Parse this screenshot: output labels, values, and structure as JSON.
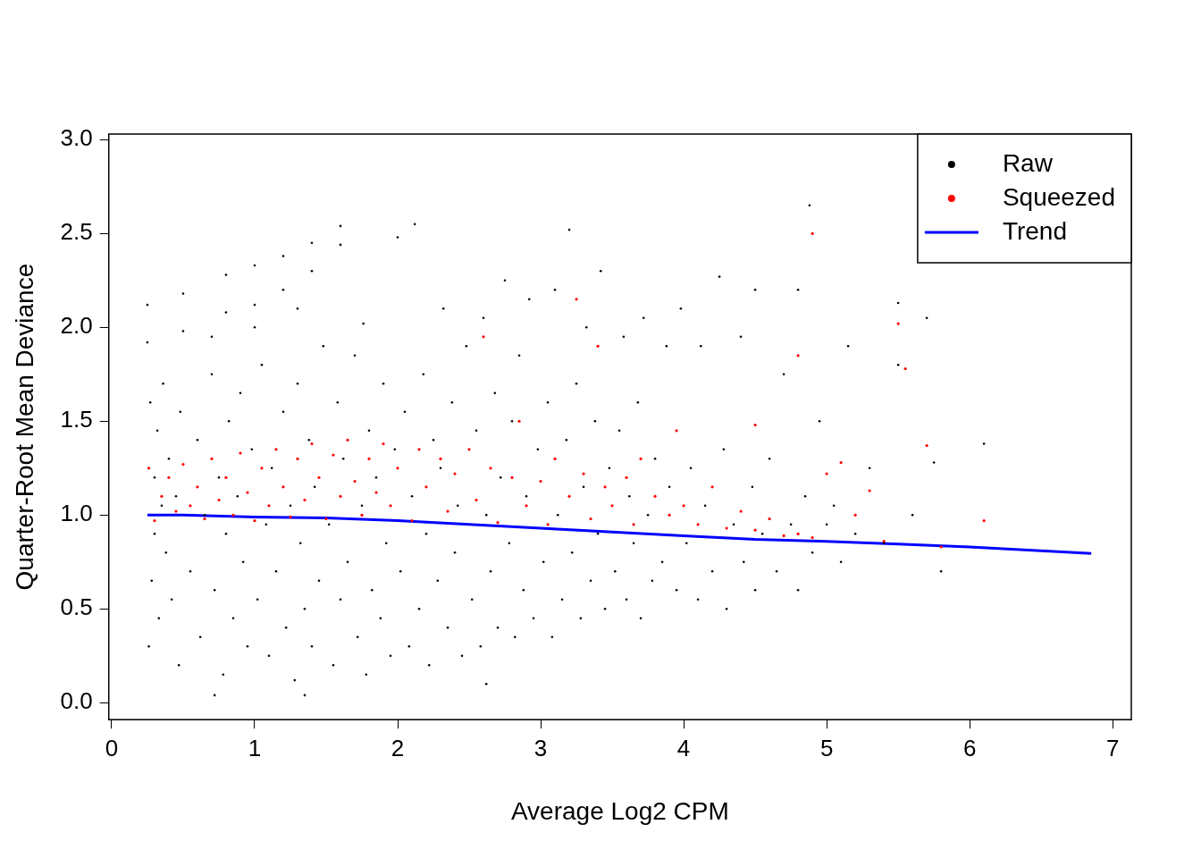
{
  "chart_data": {
    "type": "scatter",
    "x_label": "Average Log2 CPM",
    "y_label": "Quarter-Root Mean Deviance",
    "xlim": [
      -0.02,
      7.13
    ],
    "ylim": [
      -0.09,
      3.03
    ],
    "xticks": [
      0,
      1,
      2,
      3,
      4,
      5,
      6,
      7
    ],
    "yticks": [
      {
        "value": 0,
        "label": "0.0"
      },
      {
        "value": 0.5,
        "label": "0.5"
      },
      {
        "value": 1,
        "label": "1.0"
      },
      {
        "value": 1.5,
        "label": "1.5"
      },
      {
        "value": 2,
        "label": "2.0"
      },
      {
        "value": 2.5,
        "label": "2.5"
      },
      {
        "value": 3,
        "label": "3.0"
      }
    ],
    "grid": false,
    "legend": "top-right",
    "series": [
      {
        "name": "Raw",
        "color": "#000000",
        "marker": "circle",
        "x": [
          0.26,
          0.27,
          0.28,
          0.3,
          0.3,
          0.32,
          0.33,
          0.35,
          0.36,
          0.38,
          0.4,
          0.42,
          0.45,
          0.47,
          0.48,
          0.25,
          0.25,
          0.5,
          0.5,
          0.8,
          1.0,
          1.2,
          1.4,
          1.6,
          0.8,
          1.0,
          1.2,
          1.4,
          1.6,
          0.7,
          1.0,
          1.3,
          0.55,
          0.6,
          0.62,
          0.65,
          0.7,
          0.72,
          0.75,
          0.78,
          0.8,
          0.82,
          0.85,
          0.88,
          0.9,
          0.92,
          0.95,
          0.98,
          0.72,
          1.02,
          1.05,
          1.08,
          1.1,
          1.12,
          1.15,
          1.2,
          1.22,
          1.25,
          1.28,
          1.3,
          1.32,
          1.35,
          1.38,
          1.4,
          1.42,
          1.45,
          1.48,
          1.35,
          1.52,
          1.55,
          1.58,
          1.6,
          1.62,
          1.65,
          1.7,
          1.72,
          1.75,
          1.78,
          1.8,
          1.82,
          1.85,
          1.88,
          1.9,
          1.92,
          1.95,
          1.98,
          1.76,
          2.02,
          2.05,
          2.08,
          2.1,
          2.12,
          2.15,
          2.18,
          2.2,
          2.22,
          2.25,
          2.28,
          2.3,
          2.32,
          2.35,
          2.38,
          2.4,
          2.42,
          2.45,
          2.48,
          2.0,
          2.52,
          2.55,
          2.58,
          2.6,
          2.62,
          2.65,
          2.68,
          2.7,
          2.72,
          2.75,
          2.78,
          2.8,
          2.82,
          2.85,
          2.88,
          2.9,
          2.92,
          2.95,
          2.98,
          2.62,
          3.02,
          3.05,
          3.08,
          3.1,
          3.12,
          3.15,
          3.18,
          3.2,
          3.22,
          3.25,
          3.28,
          3.3,
          3.32,
          3.35,
          3.38,
          3.4,
          3.42,
          3.45,
          3.48,
          3.52,
          3.55,
          3.58,
          3.6,
          3.62,
          3.65,
          3.68,
          3.7,
          3.72,
          3.75,
          3.78,
          3.8,
          3.85,
          3.88,
          3.9,
          3.95,
          3.98,
          4.02,
          4.05,
          4.1,
          4.12,
          4.15,
          4.2,
          4.25,
          4.28,
          4.3,
          4.35,
          4.4,
          4.42,
          4.48,
          4.5,
          4.5,
          4.55,
          4.6,
          4.65,
          4.7,
          4.75,
          4.8,
          4.8,
          4.85,
          4.88,
          4.9,
          4.95,
          5.0,
          5.05,
          5.1,
          5.15,
          5.2,
          5.3,
          5.4,
          5.5,
          5.5,
          5.6,
          5.7,
          5.75,
          5.8,
          6.1
        ],
        "values": [
          0.3,
          1.6,
          0.65,
          1.2,
          0.9,
          1.45,
          0.45,
          1.05,
          1.7,
          0.8,
          1.3,
          0.55,
          1.1,
          0.2,
          1.55,
          2.12,
          1.92,
          2.18,
          1.98,
          2.28,
          2.33,
          2.38,
          2.45,
          2.54,
          2.08,
          2.12,
          2.2,
          2.3,
          2.44,
          1.95,
          2.0,
          2.1,
          0.7,
          1.4,
          0.35,
          1.0,
          1.75,
          0.6,
          1.2,
          0.15,
          0.9,
          1.5,
          0.45,
          1.1,
          1.65,
          0.75,
          0.3,
          1.35,
          0.04,
          0.55,
          1.8,
          0.95,
          0.25,
          1.25,
          0.7,
          1.55,
          0.4,
          1.05,
          0.12,
          1.7,
          0.85,
          0.5,
          1.4,
          0.3,
          1.15,
          0.65,
          1.9,
          0.04,
          0.95,
          0.2,
          1.6,
          0.55,
          1.3,
          0.75,
          1.85,
          0.35,
          1.05,
          0.15,
          1.45,
          0.6,
          1.2,
          0.45,
          1.7,
          0.85,
          0.25,
          1.35,
          2.02,
          0.7,
          1.55,
          0.3,
          1.1,
          2.55,
          0.5,
          1.75,
          0.9,
          0.2,
          1.4,
          0.65,
          1.25,
          2.1,
          0.4,
          1.6,
          0.8,
          1.05,
          0.25,
          1.9,
          2.48,
          0.55,
          1.45,
          0.3,
          2.05,
          1.0,
          0.7,
          1.65,
          0.4,
          1.2,
          2.25,
          0.85,
          1.5,
          0.35,
          1.85,
          0.6,
          1.1,
          2.15,
          0.45,
          1.35,
          0.1,
          0.75,
          1.6,
          0.35,
          2.2,
          1.0,
          0.55,
          1.4,
          2.52,
          0.8,
          1.7,
          0.45,
          1.15,
          2.0,
          0.65,
          1.5,
          0.9,
          2.3,
          0.5,
          1.25,
          0.7,
          1.45,
          1.95,
          0.55,
          1.1,
          0.85,
          1.6,
          0.45,
          2.05,
          1.0,
          0.65,
          1.3,
          0.75,
          1.9,
          1.15,
          0.6,
          2.1,
          0.85,
          1.25,
          0.55,
          1.9,
          1.05,
          0.7,
          2.27,
          1.35,
          0.5,
          0.95,
          1.95,
          0.75,
          1.15,
          2.2,
          0.6,
          0.9,
          1.3,
          0.7,
          1.75,
          0.95,
          0.6,
          2.2,
          1.1,
          2.65,
          0.8,
          1.5,
          0.95,
          1.05,
          0.75,
          1.9,
          0.9,
          1.25,
          0.85,
          2.13,
          1.8,
          1.0,
          2.05,
          1.28,
          0.7,
          1.38
        ]
      },
      {
        "name": "Squeezed",
        "color": "#ff0000",
        "marker": "circle",
        "x": [
          0.26,
          0.3,
          0.35,
          0.4,
          0.45,
          0.5,
          0.55,
          0.6,
          0.65,
          0.7,
          0.75,
          0.8,
          0.85,
          0.9,
          0.95,
          1.0,
          1.05,
          1.1,
          1.15,
          1.2,
          1.25,
          1.3,
          1.35,
          1.4,
          1.45,
          1.5,
          1.55,
          1.6,
          1.65,
          1.7,
          1.75,
          1.8,
          1.85,
          1.9,
          1.95,
          2.0,
          2.1,
          2.15,
          2.2,
          2.3,
          2.35,
          2.4,
          2.5,
          2.55,
          2.6,
          2.65,
          2.7,
          2.8,
          2.85,
          2.9,
          3.0,
          3.05,
          3.1,
          3.2,
          3.25,
          3.3,
          3.35,
          3.4,
          3.45,
          3.5,
          3.6,
          3.65,
          3.7,
          3.8,
          3.9,
          3.95,
          4.0,
          4.1,
          4.2,
          4.3,
          4.4,
          4.5,
          4.5,
          4.6,
          4.7,
          4.8,
          4.8,
          4.9,
          4.9,
          5.0,
          5.1,
          5.2,
          5.3,
          5.4,
          5.5,
          5.55,
          5.7,
          5.8,
          6.1
        ],
        "values": [
          1.25,
          0.97,
          1.1,
          1.2,
          1.02,
          1.27,
          1.05,
          1.15,
          0.98,
          1.3,
          1.08,
          1.2,
          1.0,
          1.33,
          1.12,
          0.97,
          1.25,
          1.05,
          1.35,
          1.15,
          0.99,
          1.3,
          1.08,
          1.38,
          1.2,
          0.98,
          1.32,
          1.1,
          1.4,
          1.18,
          1.0,
          1.3,
          1.12,
          1.38,
          1.05,
          1.25,
          0.97,
          1.35,
          1.15,
          1.3,
          1.02,
          1.22,
          1.35,
          1.08,
          1.95,
          1.25,
          0.96,
          1.2,
          1.5,
          1.05,
          1.18,
          0.95,
          1.3,
          1.1,
          2.15,
          1.22,
          0.98,
          1.9,
          1.15,
          1.05,
          1.2,
          0.95,
          1.3,
          1.1,
          1.0,
          1.45,
          1.05,
          0.95,
          1.15,
          0.93,
          1.02,
          1.48,
          0.92,
          0.98,
          0.89,
          1.85,
          0.9,
          2.5,
          0.88,
          1.22,
          1.28,
          1.0,
          1.13,
          0.86,
          2.02,
          1.78,
          1.37,
          0.83,
          0.97
        ]
      },
      {
        "name": "Trend",
        "color": "#0000ff",
        "type": "line",
        "line_style": "solid",
        "x": [
          0.25,
          0.5,
          1,
          1.5,
          2,
          2.5,
          3,
          3.5,
          4,
          4.5,
          5,
          5.5,
          6,
          6.5,
          6.85
        ],
        "values": [
          1.0,
          1.0,
          0.99,
          0.985,
          0.97,
          0.95,
          0.93,
          0.91,
          0.89,
          0.87,
          0.86,
          0.845,
          0.83,
          0.81,
          0.795
        ]
      }
    ]
  }
}
